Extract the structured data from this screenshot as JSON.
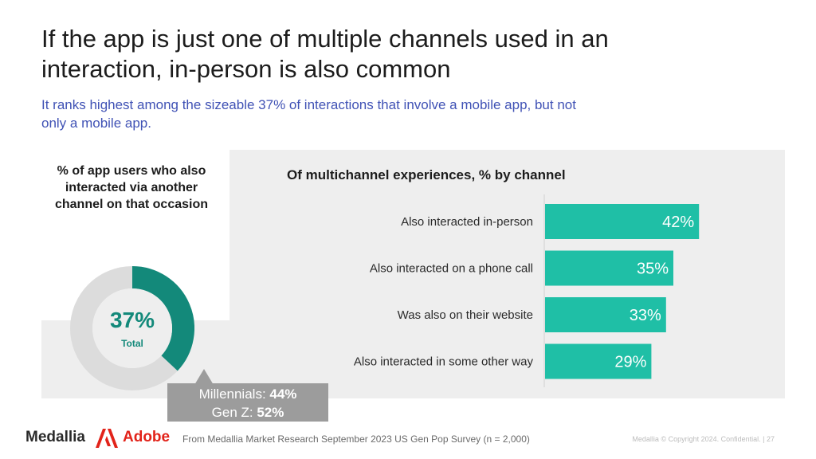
{
  "title": "If the app is just one of multiple channels used in an interaction, in-person is also common",
  "subtitle": "It ranks highest among the sizeable 37% of interactions that involve a mobile app, but not only a mobile app.",
  "left_panel": {
    "heading": "% of app users who also interacted via another channel on that occasion",
    "donut": {
      "value_label": "37%",
      "center_label": "Total",
      "value": 37,
      "fill_color": "#13897a",
      "track_color": "#dcdcdc"
    },
    "callout": {
      "line1_label": "Millennials: ",
      "line1_value": "44%",
      "line2_label": "Gen Z: ",
      "line2_value": "52%"
    }
  },
  "chart_data": {
    "type": "bar",
    "orientation": "horizontal",
    "title": "Of multichannel experiences, % by channel",
    "categories": [
      "Also interacted in-person",
      "Also interacted on a phone call",
      "Was also on their website",
      "Also interacted in some other way"
    ],
    "values": [
      42,
      35,
      33,
      29
    ],
    "value_labels": [
      "42%",
      "35%",
      "33%",
      "29%"
    ],
    "xlim": [
      0,
      100
    ],
    "bar_color": "#1fbfa6",
    "grid": false
  },
  "footer": {
    "brand1": "Medallia",
    "brand2": "Adobe",
    "source": "From Medallia Market Research September 2023 US Gen Pop Survey (n = 2,000)",
    "copyright": "Medallia © Copyright 2024. Confidential.  |  27"
  }
}
